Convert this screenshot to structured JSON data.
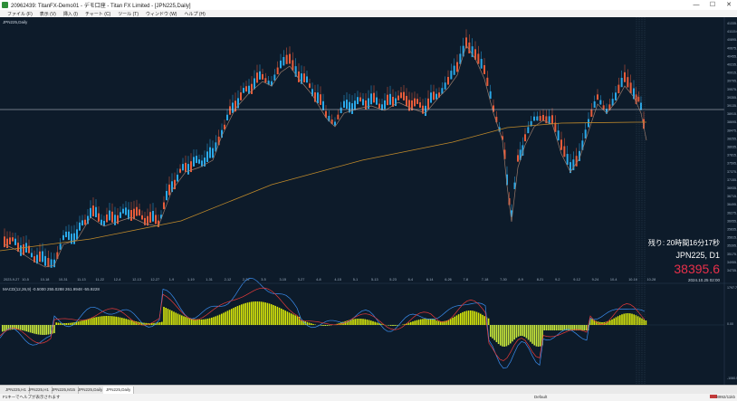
{
  "window": {
    "title": "20962439: TitanFX-Demo01 - デモ口座 - Titan FX Limited - [JPN225,Daily]",
    "buttons": [
      "—",
      "☐",
      "✕"
    ]
  },
  "menu": [
    "ファイル (F)",
    "表示 (V)",
    "挿入 (I)",
    "チャート (C)",
    "ツール (T)",
    "ウィンドウ (W)",
    "ヘルプ (H)"
  ],
  "chart": {
    "symbol_label": "JPN225,Daily",
    "countdown": "残り: 20時間16分17秒",
    "symbol_tf": "JPN225, D1",
    "price": "38395.6",
    "date_labels": [
      "2023-9-27",
      "10-5",
      "10-18",
      "10-31",
      "11-13",
      "11-22",
      "12-4",
      "12-13",
      "12-27",
      "1-9",
      "1-19",
      "1-31",
      "2-12",
      "2-22",
      "3-5",
      "3-15",
      "3-27",
      "4-8",
      "4-15",
      "5-1",
      "5-13",
      "5-23",
      "6-4",
      "6-14",
      "6-26",
      "7-8",
      "7-18",
      "7-30",
      "8-9",
      "8-21",
      "9-2",
      "9-12",
      "9-24",
      "10-4",
      "10-16",
      "10-28"
    ],
    "price_labels": [
      "41335.0",
      "41115.0",
      "40895.0",
      "40675.0",
      "40455.0",
      "40235.0",
      "40015.0",
      "39795.0",
      "39575.0",
      "39355.0",
      "39135.0",
      "38915.0",
      "38695.0",
      "38475.0",
      "38255.0",
      "38035.0",
      "37815.0",
      "37595.0",
      "37375.0",
      "37155.0",
      "36935.0",
      "36715.0",
      "36495.0",
      "36275.0",
      "36055.0",
      "35835.0",
      "35615.0",
      "35395.0",
      "35175.0",
      "34955.0",
      "34735.0"
    ],
    "time_label": "2024.10.25 02:00",
    "osc_label": "MACD(12,26,9) -0.5000 255.0288 261.9948 -55.9228",
    "osc_price_labels": [
      "1797.79",
      "0.00",
      "-1060.5"
    ],
    "colors": {
      "bg": "#0d1b2a",
      "bull": "#2aa8e8",
      "bear": "#e85c3a",
      "ma": "#c08a2a",
      "osc_hist_pos": "#d6e60a",
      "osc_hist_neg": "#c8e83a",
      "osc_line1": "#3a8ef0",
      "osc_line2": "#e83a3a"
    }
  },
  "tabs": [
    "JPN225,H1",
    "JPN225,H1",
    "JPN225,M15",
    "JPN225,Daily",
    "JPN225,Daily"
  ],
  "status": {
    "help": "F1キーでヘルプが表示されます",
    "profile": "Default",
    "traffic": "8992/11kb"
  }
}
